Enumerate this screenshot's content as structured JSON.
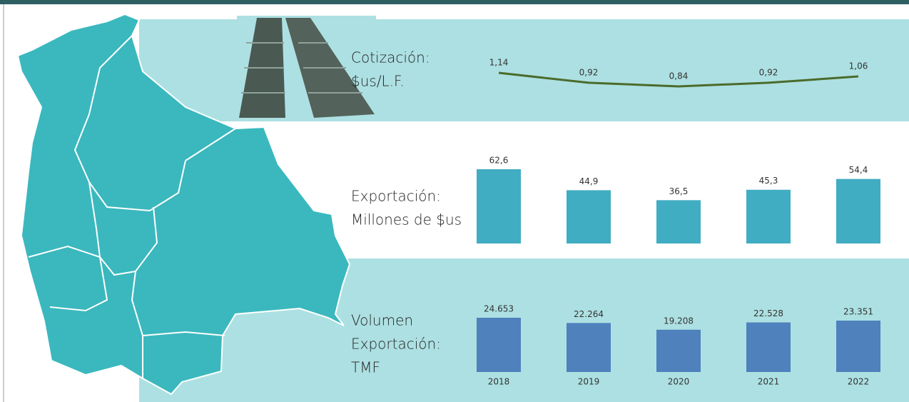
{
  "chart_data": [
    {
      "type": "line",
      "title": [
        "Cotización:",
        "$us/L.F."
      ],
      "values": [
        1.14,
        0.92,
        0.84,
        0.92,
        1.06
      ],
      "value_labels": [
        "1,14",
        "0,92",
        "0,84",
        "0,92",
        "1,06"
      ],
      "color": "#4b6b2b"
    },
    {
      "type": "bar",
      "title": [
        "Exportación:",
        "Millones de $us"
      ],
      "values": [
        62.6,
        44.9,
        36.5,
        45.3,
        54.4
      ],
      "value_labels": [
        "62,6",
        "44,9",
        "36,5",
        "45,3",
        "54,4"
      ],
      "color": "#41adc2"
    },
    {
      "type": "bar",
      "title": [
        "Volumen",
        "Exportación:",
        "TMF"
      ],
      "categories": [
        "2018",
        "2019",
        "2020",
        "2021",
        "2022"
      ],
      "values": [
        24653,
        22264,
        19208,
        22528,
        23351
      ],
      "value_labels": [
        "24.653",
        "22.264",
        "19.208",
        "22.528",
        "23.351"
      ],
      "color": "#4f81bd"
    }
  ]
}
